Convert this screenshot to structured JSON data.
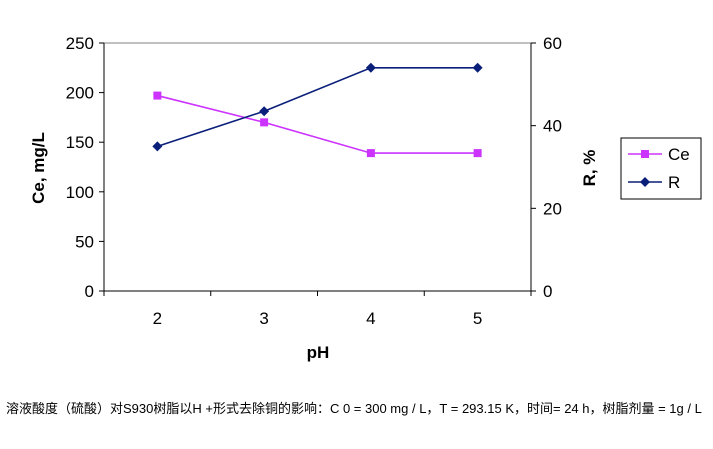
{
  "chart_data": {
    "type": "line",
    "x": [
      2,
      3,
      4,
      5
    ],
    "xlabel": "pH",
    "xlim": [
      1.5,
      5.5
    ],
    "y_left": {
      "label": "Ce, mg/L",
      "lim": [
        0,
        250
      ],
      "ticks": [
        0,
        50,
        100,
        150,
        200,
        250
      ]
    },
    "y_right": {
      "label": "R, %",
      "lim": [
        0,
        60
      ],
      "ticks": [
        0,
        20,
        40,
        60
      ]
    },
    "series": [
      {
        "name": "Ce",
        "axis": "left",
        "values": [
          197,
          170,
          139,
          139
        ],
        "color": "#cc33ff",
        "marker": "square"
      },
      {
        "name": "R",
        "axis": "right",
        "values": [
          35,
          43.5,
          54,
          54
        ],
        "color": "#0a1f7a",
        "marker": "diamond"
      }
    ],
    "grid": false,
    "legend_position": "right"
  },
  "caption": "溶液酸度（硫酸）对S930树脂以H +形式去除铜的影响：C 0 = 300 mg / L，T = 293.15 K，时间= 24 h，树脂剂量 = 1g / L"
}
